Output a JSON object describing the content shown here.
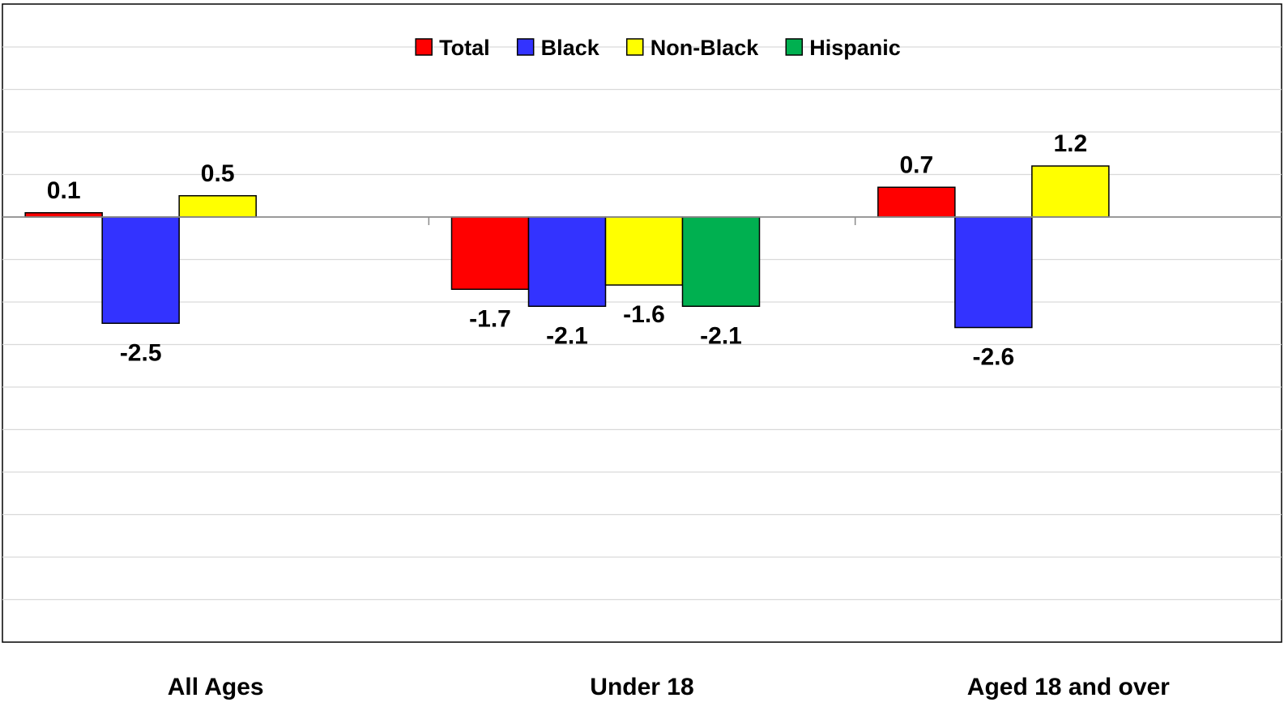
{
  "chart_data": {
    "type": "bar",
    "title": "",
    "xlabel": "",
    "ylabel": "",
    "categories": [
      "All Ages",
      "Under 18",
      "Aged 18 and over"
    ],
    "series": [
      {
        "name": "Total",
        "color": "#ff0000",
        "values": [
          0.1,
          -1.7,
          0.7
        ]
      },
      {
        "name": "Black",
        "color": "#3333ff",
        "values": [
          -2.5,
          -2.1,
          -2.6
        ]
      },
      {
        "name": "Non-Black",
        "color": "#ffff00",
        "values": [
          0.5,
          -1.6,
          1.2
        ]
      },
      {
        "name": "Hispanic",
        "color": "#00b050",
        "values": [
          null,
          -2.1,
          null
        ]
      }
    ],
    "value_labels": [
      [
        "0.1",
        "-1.7",
        "0.7"
      ],
      [
        "-2.5",
        "-2.1",
        "-2.6"
      ],
      [
        "0.5",
        "-1.6",
        "1.2"
      ],
      [
        "",
        "-2.1",
        ""
      ]
    ],
    "ylim": [
      -10,
      4
    ],
    "y_gridline_step": 1,
    "grid": true,
    "legend_position": "top-center",
    "y_tick_labels_shown": false
  }
}
